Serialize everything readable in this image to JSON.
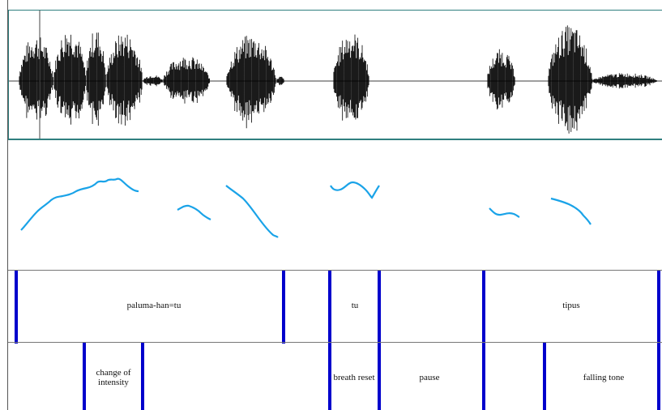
{
  "tiers": {
    "words": {
      "labels": [
        "paluma-han=tu",
        "tu",
        "tipus"
      ]
    },
    "prosody": {
      "labels": [
        "change of intensity",
        "breath reset",
        "pause",
        "falling tone"
      ]
    }
  },
  "colors": {
    "waveform": "#000000",
    "pitch_contour": "#1aa3e8",
    "boundary": "#0000cc",
    "panel_border": "#2f7f7f"
  }
}
